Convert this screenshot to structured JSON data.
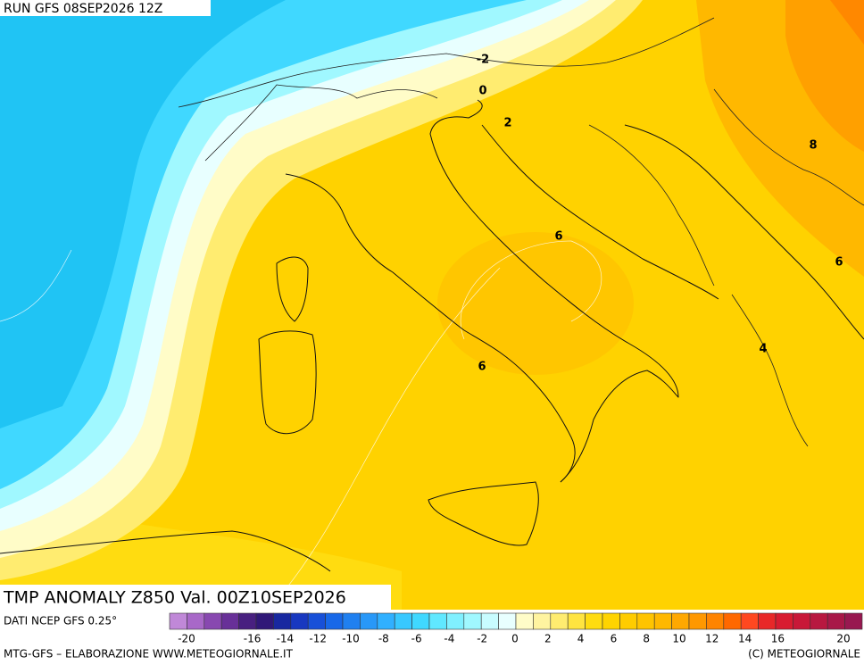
{
  "header": {
    "run": "RUN GFS 08SEP2026 12Z",
    "title": "TMP ANOMALY Z850 Val. 00Z10SEP2026",
    "source": "DATI NCEP GFS 0.25°"
  },
  "contour_labels": [
    -2,
    0,
    2,
    6,
    6,
    8,
    6,
    4
  ],
  "legend": {
    "colors": [
      "#c088d8",
      "#a868c8",
      "#8848b0",
      "#683098",
      "#482080",
      "#301878",
      "#1828a0",
      "#1838c0",
      "#1850d8",
      "#1868e8",
      "#2080f0",
      "#2898f8",
      "#30b0ff",
      "#38c8ff",
      "#40d8ff",
      "#60e8ff",
      "#80f0ff",
      "#a0f8ff",
      "#c8fcff",
      "#e8ffff",
      "#fffcc8",
      "#fff4a0",
      "#ffec70",
      "#ffe440",
      "#ffdc10",
      "#ffd400",
      "#ffcc00",
      "#ffc400",
      "#ffb800",
      "#ffa800",
      "#ff9800",
      "#ff8400",
      "#ff6800",
      "#ff4820",
      "#e82828",
      "#d81c30",
      "#c81838",
      "#b81840",
      "#a81848",
      "#981850"
    ],
    "labels": [
      -20,
      -16,
      -14,
      -12,
      -10,
      -8,
      -6,
      -4,
      -2,
      0,
      2,
      4,
      6,
      8,
      10,
      12,
      14,
      16,
      20
    ]
  },
  "footer": {
    "left": "MTG-GFS – ELABORAZIONE WWW.METEOGIORNALE.IT",
    "right": "(C) METEOGIORNALE"
  }
}
